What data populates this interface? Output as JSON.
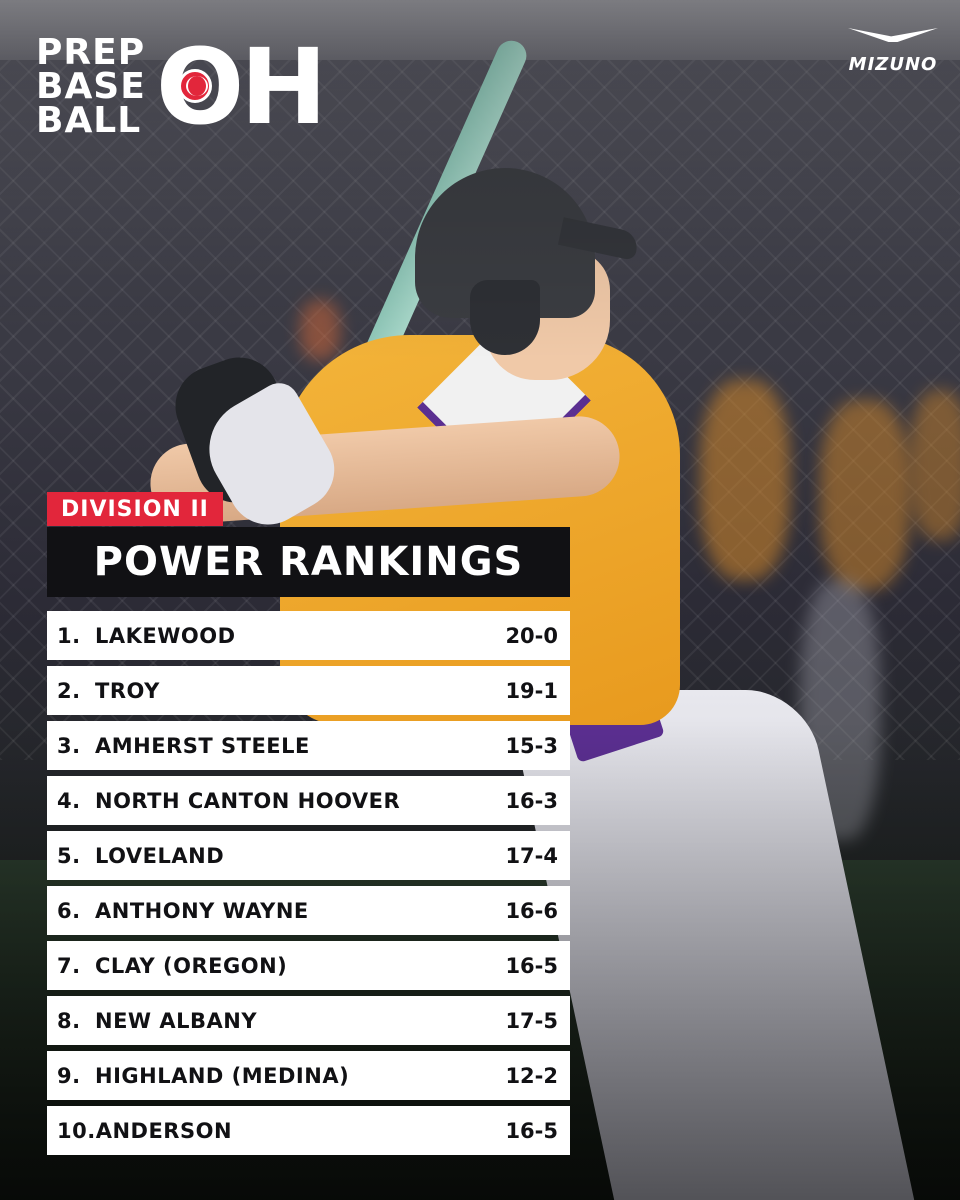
{
  "brand": {
    "logo_words": [
      "PREP",
      "BASE",
      "BALL"
    ],
    "logo_state": "OH",
    "sponsor": "MIZUNO"
  },
  "header": {
    "division": "DIVISION II",
    "title": "POWER RANKINGS"
  },
  "rankings": [
    {
      "rank": "1.",
      "team": "LAKEWOOD",
      "record": "20-0"
    },
    {
      "rank": "2.",
      "team": "TROY",
      "record": "19-1"
    },
    {
      "rank": "3.",
      "team": "AMHERST STEELE",
      "record": "15-3"
    },
    {
      "rank": "4.",
      "team": "NORTH CANTON HOOVER",
      "record": "16-3"
    },
    {
      "rank": "5.",
      "team": "LOVELAND",
      "record": "17-4"
    },
    {
      "rank": "6.",
      "team": "ANTHONY WAYNE",
      "record": "16-6"
    },
    {
      "rank": "7.",
      "team": "CLAY (OREGON)",
      "record": "16-5"
    },
    {
      "rank": "8.",
      "team": "NEW ALBANY",
      "record": "17-5"
    },
    {
      "rank": "9.",
      "team": "HIGHLAND (MEDINA)",
      "record": "12-2"
    },
    {
      "rank": "10.",
      "team": "ANDERSON",
      "record": "16-5"
    }
  ],
  "colors": {
    "accent_red": "#e2263b",
    "title_bg": "#111114",
    "row_bg": "#ffffff",
    "text_dark": "#111114"
  }
}
